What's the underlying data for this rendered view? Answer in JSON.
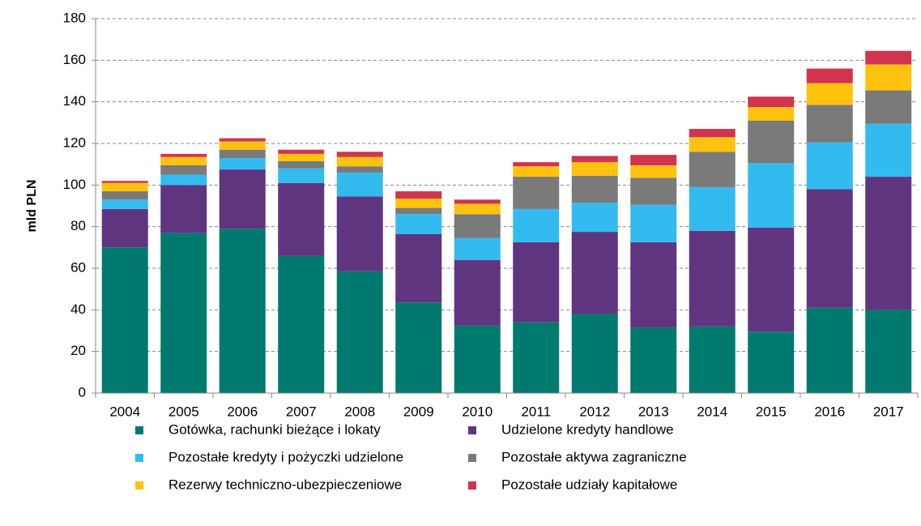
{
  "chart_data": {
    "type": "stacked_bar",
    "y_label": "mld PLN",
    "categories": [
      "2004",
      "2005",
      "2006",
      "2007",
      "2008",
      "2009",
      "2010",
      "2011",
      "2012",
      "2013",
      "2014",
      "2015",
      "2016",
      "2017"
    ],
    "series": [
      {
        "name": "Gotówka, rachunki bieżące i lokaty",
        "color": "#007a6e",
        "values": [
          70,
          77,
          79,
          66,
          58.5,
          43.5,
          32.5,
          34,
          38,
          31.5,
          32,
          29.5,
          41,
          40
        ]
      },
      {
        "name": "Udzielone kredyty handlowe",
        "color": "#5f3580",
        "values": [
          18.5,
          23,
          28.5,
          35,
          36,
          33,
          31.5,
          38.5,
          39.5,
          41,
          46,
          50,
          57,
          64
        ]
      },
      {
        "name": "Pozostałe kredyty i pożyczki udzielone",
        "color": "#33bbf0",
        "values": [
          4.5,
          5,
          5.5,
          7,
          11.5,
          9.5,
          10.5,
          16,
          14,
          18,
          21,
          31,
          22.5,
          25.5
        ]
      },
      {
        "name": "Pozostałe aktywa zagraniczne",
        "color": "#7a7a7a",
        "values": [
          4,
          4.5,
          4,
          3.5,
          3,
          3,
          11.5,
          15.5,
          13,
          13,
          17,
          20.5,
          18,
          16
        ]
      },
      {
        "name": "Rezerwy techniczno-ubezpieczeniowe",
        "color": "#ffc20e",
        "values": [
          4,
          4,
          4,
          3.5,
          4.5,
          4.5,
          5,
          5,
          6.5,
          6,
          7,
          6.5,
          10.5,
          12.5
        ]
      },
      {
        "name": "Pozostałe udziały kapitałowe",
        "color": "#d0344f",
        "values": [
          1,
          1.5,
          1.5,
          2,
          2.5,
          3.5,
          2,
          2,
          3,
          5,
          4,
          5,
          7,
          6.5
        ]
      }
    ],
    "ylim": [
      0,
      180
    ],
    "yticks": [
      0,
      20,
      40,
      60,
      80,
      100,
      120,
      140,
      160,
      180
    ],
    "grid": true
  }
}
